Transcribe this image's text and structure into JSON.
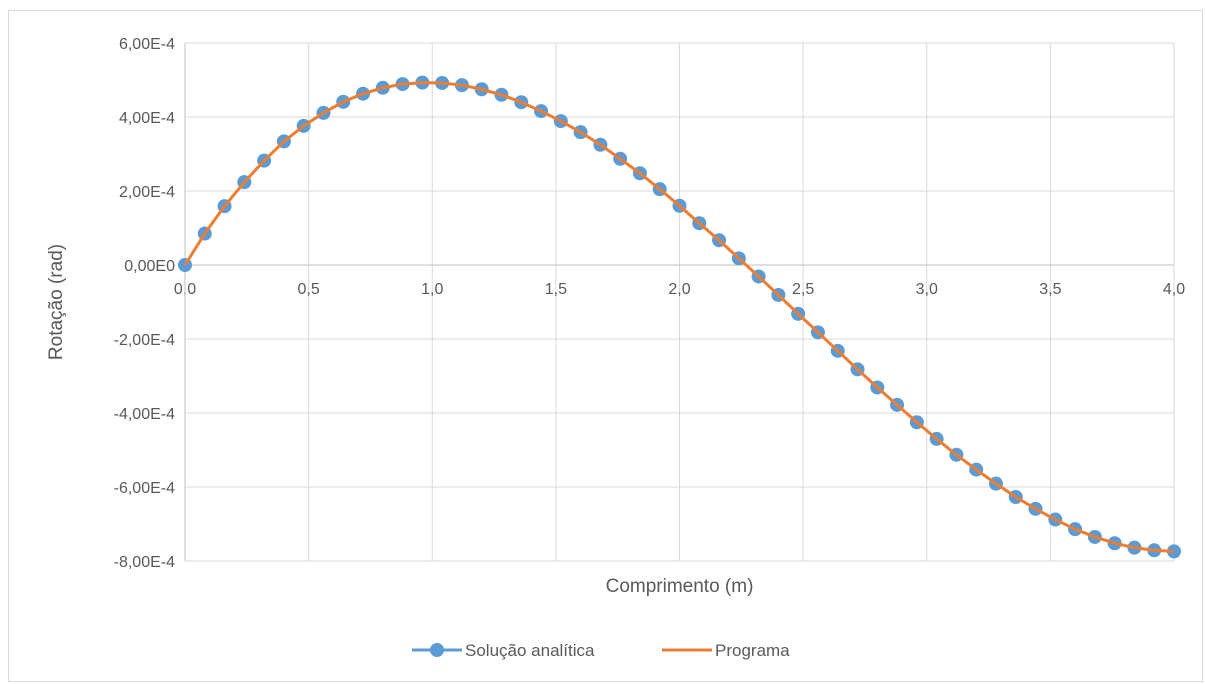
{
  "chart_data": {
    "type": "line",
    "title": "",
    "xlabel": "Comprimento (m)",
    "ylabel": "Rotação (rad)",
    "xlim": [
      0,
      4
    ],
    "ylim": [
      -0.0008,
      0.0006
    ],
    "x_ticks": [
      0,
      0.5,
      1,
      1.5,
      2,
      2.5,
      3,
      3.5,
      4
    ],
    "x_tick_labels": [
      "0,0",
      "0,5",
      "1,0",
      "1,5",
      "2,0",
      "2,5",
      "3,0",
      "3,5",
      "4,0"
    ],
    "y_ticks": [
      0.0006,
      0.0004,
      0.0002,
      0,
      -0.0002,
      -0.0004,
      -0.0006,
      -0.0008
    ],
    "y_tick_labels": [
      "6,00E-4",
      "4,00E-4",
      "2,00E-4",
      "0,00E0",
      "-2,00E-4",
      "-4,00E-4",
      "-6,00E-4",
      "-8,00E-4"
    ],
    "grid": true,
    "legend_position": "bottom",
    "series": [
      {
        "name": "Solução analítica",
        "color": "#5b9bd5",
        "marker": "circle",
        "x": [
          0,
          0.08,
          0.16,
          0.24,
          0.32,
          0.4,
          0.48,
          0.56,
          0.64,
          0.72,
          0.8,
          0.88,
          0.96,
          1.04,
          1.12,
          1.2,
          1.28,
          1.36,
          1.44,
          1.52,
          1.6,
          1.68,
          1.76,
          1.84,
          1.92,
          2.0,
          2.08,
          2.16,
          2.24,
          2.32,
          2.4,
          2.48,
          2.56,
          2.64,
          2.72,
          2.8,
          2.88,
          2.96,
          3.04,
          3.12,
          3.2,
          3.28,
          3.36,
          3.44,
          3.52,
          3.6,
          3.68,
          3.76,
          3.84,
          3.92,
          4.0
        ],
        "y": [
          0,
          8.5e-05,
          0.000159,
          0.000224,
          0.000282,
          0.000334,
          0.000376,
          0.000411,
          0.000441,
          0.000463,
          0.000479,
          0.000489,
          0.000493,
          0.000492,
          0.000486,
          0.000475,
          0.00046,
          0.00044,
          0.000416,
          0.000389,
          0.000359,
          0.000325,
          0.000287,
          0.000248,
          0.000205,
          0.00016,
          0.000113,
          6.7e-05,
          1.8e-05,
          -3.1e-05,
          -8.1e-05,
          -0.000132,
          -0.000182,
          -0.000232,
          -0.000282,
          -0.000331,
          -0.000378,
          -0.000425,
          -0.00047,
          -0.000513,
          -0.000553,
          -0.000591,
          -0.000627,
          -0.000659,
          -0.000688,
          -0.000714,
          -0.000735,
          -0.000752,
          -0.000764,
          -0.000771,
          -0.000774
        ]
      },
      {
        "name": "Programa",
        "color": "#ed7d31",
        "marker": "none",
        "x": [
          0,
          0.08,
          0.16,
          0.24,
          0.32,
          0.4,
          0.48,
          0.56,
          0.64,
          0.72,
          0.8,
          0.88,
          0.96,
          1.04,
          1.12,
          1.2,
          1.28,
          1.36,
          1.44,
          1.52,
          1.6,
          1.68,
          1.76,
          1.84,
          1.92,
          2.0,
          2.08,
          2.16,
          2.24,
          2.32,
          2.4,
          2.48,
          2.56,
          2.64,
          2.72,
          2.8,
          2.88,
          2.96,
          3.04,
          3.12,
          3.2,
          3.28,
          3.36,
          3.44,
          3.52,
          3.6,
          3.68,
          3.76,
          3.84,
          3.92,
          4.0
        ],
        "y": [
          0,
          8.5e-05,
          0.000159,
          0.000224,
          0.000282,
          0.000334,
          0.000376,
          0.000411,
          0.000441,
          0.000463,
          0.000479,
          0.000489,
          0.000493,
          0.000492,
          0.000486,
          0.000475,
          0.00046,
          0.00044,
          0.000416,
          0.000389,
          0.000359,
          0.000325,
          0.000287,
          0.000248,
          0.000205,
          0.00016,
          0.000113,
          6.7e-05,
          1.8e-05,
          -3.1e-05,
          -8.1e-05,
          -0.000132,
          -0.000182,
          -0.000232,
          -0.000282,
          -0.000331,
          -0.000378,
          -0.000425,
          -0.00047,
          -0.000513,
          -0.000553,
          -0.000591,
          -0.000627,
          -0.000659,
          -0.000688,
          -0.000714,
          -0.000735,
          -0.000752,
          -0.000764,
          -0.000771,
          -0.000774
        ]
      }
    ]
  }
}
